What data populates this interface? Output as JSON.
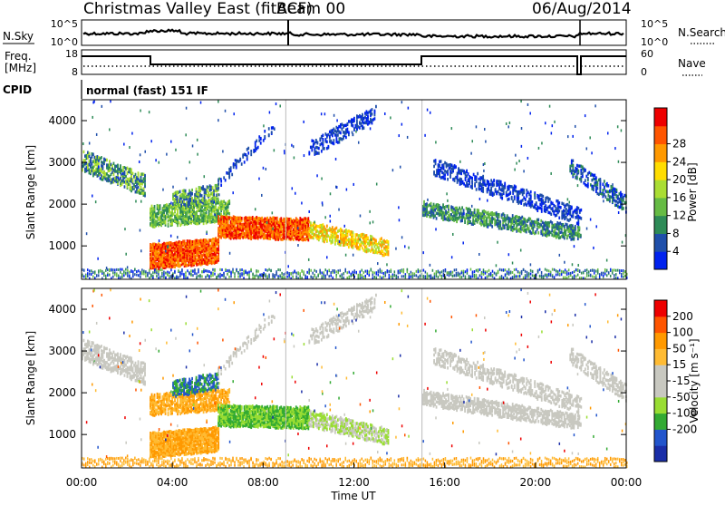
{
  "header": {
    "title": "Christmas Valley East (fitACF)",
    "beam": "Beam 00",
    "date": "06/Aug/2014"
  },
  "strip1": {
    "left_label": "N.Sky",
    "left_ticks": [
      "10^5",
      "10^0"
    ],
    "right_ticks": [
      "10^5",
      "10^0"
    ],
    "right_label": "N.Search"
  },
  "strip2": {
    "left_label_1": "Freq.",
    "left_label_2": "[MHz]",
    "left_ticks": [
      "18",
      "8"
    ],
    "right_ticks": [
      "60",
      "0"
    ],
    "right_label": "Nave"
  },
  "cpid": {
    "label": "CPID",
    "mode": "normal (fast) 151 IF"
  },
  "colors": {
    "power": [
      "#0022ee",
      "#1f4faa",
      "#2e8b57",
      "#66bb44",
      "#aadd33",
      "#ffdd00",
      "#ff9900",
      "#ff5500",
      "#ee0000"
    ],
    "velocity": [
      "#ee0000",
      "#ff5500",
      "#ff9900",
      "#ffbb33",
      "#c8c8c0",
      "#c8c8c0",
      "#99dd33",
      "#33aa33",
      "#2255cc",
      "#1a2ea8"
    ]
  },
  "chart_data": [
    {
      "type": "heatmap",
      "panel": "power",
      "ylabel": "Slant Range [km]",
      "yticks": [
        "1000",
        "2000",
        "3000",
        "4000"
      ],
      "ylim": [
        200,
        4500
      ],
      "colorbar_label": "Power [dB]",
      "colorbar_ticks": [
        "4",
        "8",
        "12",
        "16",
        "20",
        "24",
        "28"
      ],
      "xlim_hours": [
        0,
        24
      ]
    },
    {
      "type": "heatmap",
      "panel": "velocity",
      "ylabel": "Slant Range [km]",
      "yticks": [
        "1000",
        "2000",
        "3000",
        "4000"
      ],
      "ylim": [
        200,
        4500
      ],
      "colorbar_label": "Velocity [m s⁻¹]",
      "colorbar_ticks": [
        "200",
        "100",
        "50",
        "15",
        "-15",
        "-50",
        "-100",
        "-200"
      ],
      "xlim_hours": [
        0,
        24
      ]
    }
  ],
  "x_axis": {
    "ticks": [
      "00:00",
      "04:00",
      "08:00",
      "12:00",
      "16:00",
      "20:00",
      "00:00"
    ],
    "label": "Time UT"
  }
}
